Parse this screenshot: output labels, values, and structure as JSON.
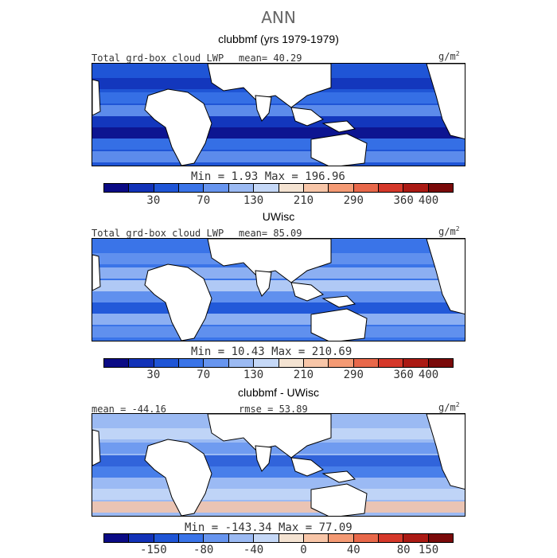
{
  "suptitle": "ANN",
  "panels": [
    {
      "title": "clubbmf (yrs 1979-1979)",
      "left_label": "Total grd-box cloud LWP",
      "center_label": "mean=  40.29",
      "unit": "g/m",
      "unit_sup": "2",
      "minmax": "Min =    1.93 Max = 196.96",
      "ticks": [
        "30",
        "70",
        "130",
        "210",
        "290",
        "360",
        "400"
      ]
    },
    {
      "title": "UWisc",
      "left_label": "Total grd-box cloud LWP",
      "center_label": "mean=  85.09",
      "unit": "g/m",
      "unit_sup": "2",
      "minmax": "Min =  10.43 Max = 210.69",
      "ticks": [
        "30",
        "70",
        "130",
        "210",
        "290",
        "360",
        "400"
      ]
    },
    {
      "title": "clubbmf - UWisc",
      "left_label": "mean = -44.16",
      "center_label": "rmse =  53.89",
      "unit": "g/m",
      "unit_sup": "2",
      "minmax": "Min = -143.34 Max =  77.09",
      "ticks": [
        "-150",
        "-80",
        "-40",
        "0",
        "40",
        "80",
        "150"
      ]
    }
  ],
  "colors": {
    "palette": [
      "#0b0b85",
      "#1232b8",
      "#1f55d6",
      "#3a74e8",
      "#6795ef",
      "#9bbaf3",
      "#c5d8f7",
      "#f4e3d2",
      "#f8c6a8",
      "#f49a74",
      "#e8684a",
      "#d5382a",
      "#ab1a14",
      "#7a0a0a"
    ],
    "land": "#ffffff",
    "coast": "#000000"
  }
}
